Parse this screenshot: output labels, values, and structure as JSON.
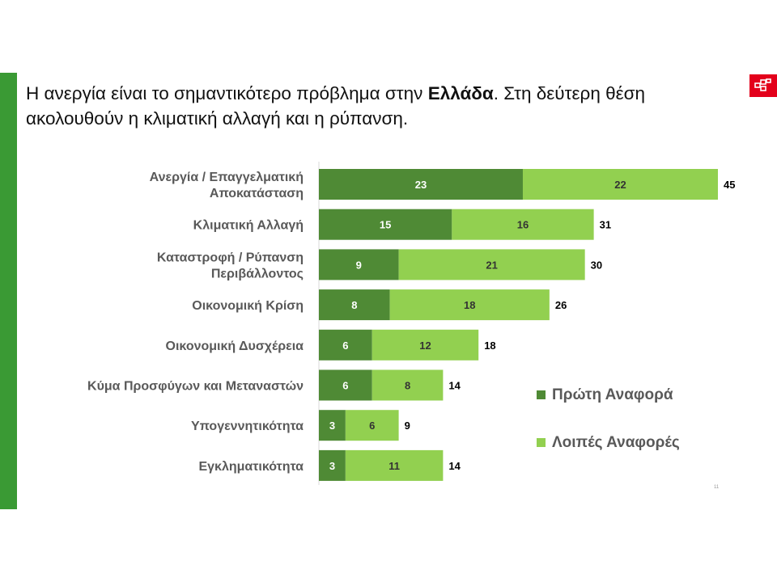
{
  "header": {
    "title_part1": "Η ανεργία είναι το σημαντικότερο πρόβλημα στην ",
    "title_bold": "Ελλάδα",
    "title_part2": ". Στη δεύτερη θέση ακολουθούν η κλιματική αλλαγή και η ρύπανση."
  },
  "logo_icon": "brand-logo-icon",
  "page_number": "11",
  "colors": {
    "primary": "#4f8a35",
    "secondary": "#92d050",
    "accent": "#3a9a34",
    "logo": "#e3001b"
  },
  "chart_data": {
    "type": "bar",
    "orientation": "horizontal",
    "stacked": true,
    "categories": [
      [
        "Ανεργία / Επαγγελματική",
        "Αποκατάσταση"
      ],
      [
        "Κλιματική Αλλαγή"
      ],
      [
        "Καταστροφή / Ρύπανση",
        "Περιβάλλοντος"
      ],
      [
        "Οικονομική Κρίση"
      ],
      [
        "Οικονομική Δυσχέρεια"
      ],
      [
        "Κύμα Προσφύγων και Μεταναστών"
      ],
      [
        "Υπογεννητικότητα"
      ],
      [
        "Εγκληματικότητα"
      ]
    ],
    "series": [
      {
        "name": "Πρώτη Αναφορά",
        "color": "#4f8a35",
        "values": [
          23,
          15,
          9,
          8,
          6,
          6,
          3,
          3
        ]
      },
      {
        "name": "Λοιπές Αναφορές",
        "color": "#92d050",
        "values": [
          22,
          16,
          21,
          18,
          12,
          8,
          6,
          11
        ]
      }
    ],
    "totals": [
      45,
      31,
      30,
      26,
      18,
      14,
      9,
      14
    ],
    "xlim": [
      0,
      45
    ],
    "legend_position": "right",
    "grid": false
  }
}
